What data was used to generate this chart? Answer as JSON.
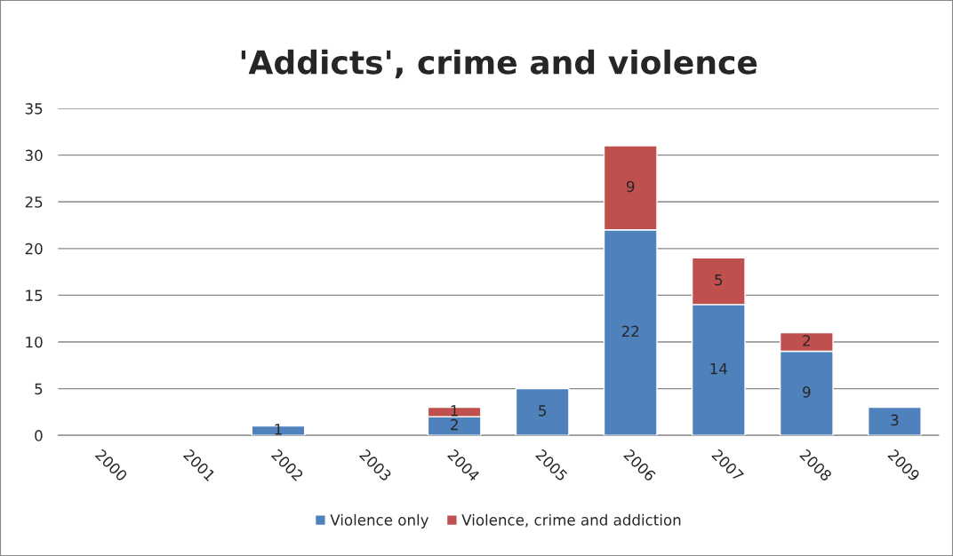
{
  "chart_data": {
    "type": "bar",
    "title": "'Addicts', crime and violence",
    "categories": [
      "2000",
      "2001",
      "2002",
      "2003",
      "2004",
      "2005",
      "2006",
      "2007",
      "2008",
      "2009"
    ],
    "series": [
      {
        "name": "Violence only",
        "color": "#4f81bd",
        "values": [
          null,
          null,
          1,
          null,
          2,
          5,
          22,
          14,
          9,
          3
        ]
      },
      {
        "name": "Violence, crime and addiction",
        "color": "#c0504d",
        "values": [
          null,
          null,
          null,
          null,
          1,
          null,
          9,
          5,
          2,
          null
        ]
      }
    ],
    "stacked": true,
    "data_labels": true,
    "ylim": [
      0,
      35
    ],
    "yticks": [
      0,
      5,
      10,
      15,
      20,
      25,
      30,
      35
    ],
    "grid": "y",
    "legend": "bottom"
  }
}
